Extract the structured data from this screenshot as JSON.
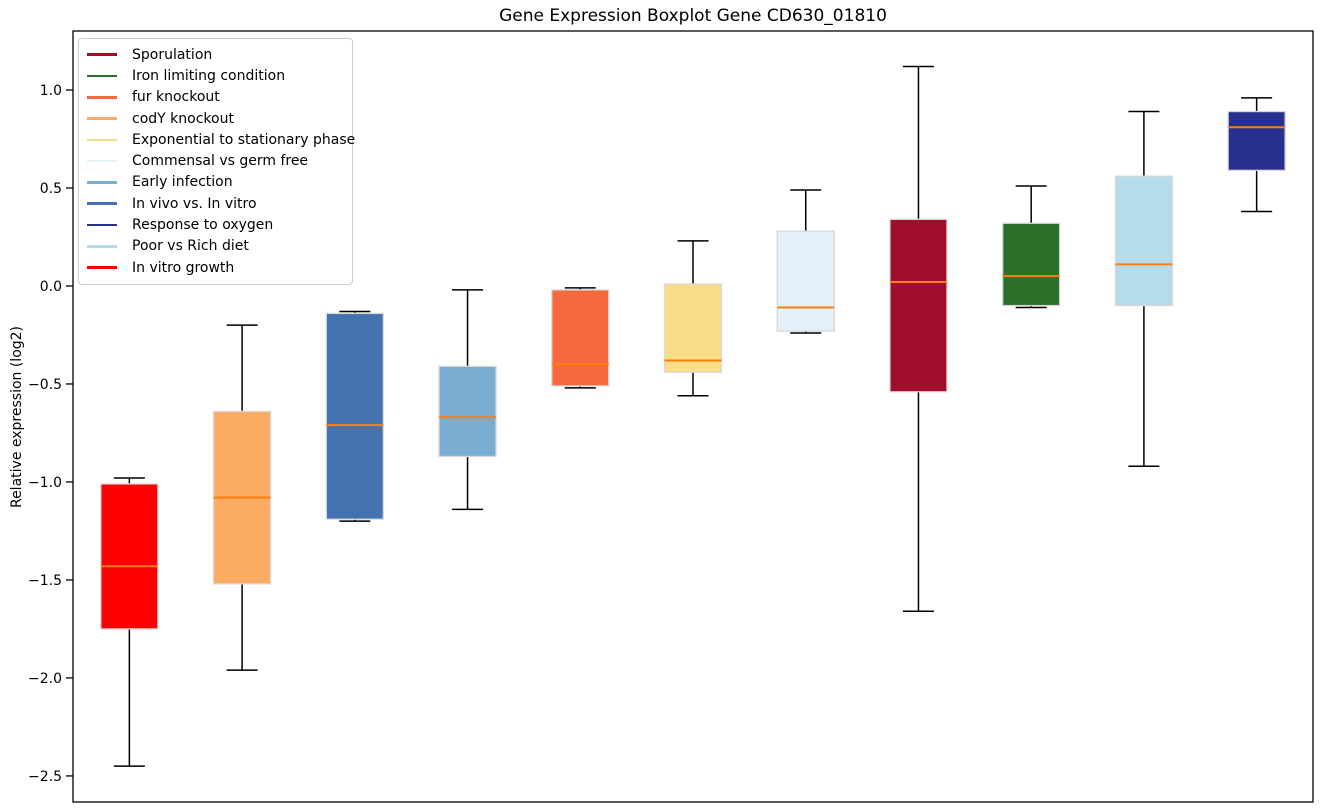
{
  "chart_data": {
    "type": "boxplot",
    "title": "Gene Expression Boxplot Gene CD630_01810",
    "ylabel": "Relative expression (log2)",
    "xlabel": "",
    "ylim": [
      -2.633,
      1.301
    ],
    "yticks": [
      1.0,
      0.5,
      0.0,
      -0.5,
      -1.0,
      -1.5,
      -2.0,
      -2.5
    ],
    "x_tick_labels": [],
    "grid": false,
    "legend_position": "upper-left",
    "colors": {
      "median_line": "#ff7f0e",
      "whisker": "#000000",
      "box_edge": "#d9d9d9",
      "axis": "#000000",
      "background": "#ffffff",
      "legend_border": "#cccccc"
    },
    "boxes": [
      {
        "name": "In vitro growth",
        "color": "#ff0000",
        "whisker_low": -2.45,
        "q1": -1.75,
        "median": -1.43,
        "q3": -1.01,
        "whisker_high": -0.98
      },
      {
        "name": "codY knockout",
        "color": "#fbab62",
        "whisker_low": -1.96,
        "q1": -1.52,
        "median": -1.08,
        "q3": -0.64,
        "whisker_high": -0.2
      },
      {
        "name": "In vivo vs. In vitro",
        "color": "#4472b0",
        "whisker_low": -1.2,
        "q1": -1.19,
        "median": -0.71,
        "q3": -0.14,
        "whisker_high": -0.13
      },
      {
        "name": "Early infection",
        "color": "#79aed2",
        "whisker_low": -1.14,
        "q1": -0.87,
        "median": -0.67,
        "q3": -0.41,
        "whisker_high": -0.02
      },
      {
        "name": "fur knockout",
        "color": "#f4693e",
        "whisker_low": -0.52,
        "q1": -0.51,
        "median": -0.4,
        "q3": -0.02,
        "whisker_high": -0.01
      },
      {
        "name": "Exponential to stationary phase",
        "color": "#fbdd87",
        "whisker_low": -0.56,
        "q1": -0.44,
        "median": -0.38,
        "q3": 0.01,
        "whisker_high": 0.23
      },
      {
        "name": "Commensal vs germ free",
        "color": "#e2f1f8",
        "whisker_low": -0.24,
        "q1": -0.23,
        "median": -0.11,
        "q3": 0.28,
        "whisker_high": 0.49
      },
      {
        "name": "Sporulation",
        "color": "#a00e2c",
        "whisker_low": -1.66,
        "q1": -0.54,
        "median": 0.02,
        "q3": 0.34,
        "whisker_high": 1.12
      },
      {
        "name": "Iron limiting condition",
        "color": "#2a7029",
        "whisker_low": -0.11,
        "q1": -0.1,
        "median": 0.05,
        "q3": 0.32,
        "whisker_high": 0.51
      },
      {
        "name": "Poor vs Rich diet",
        "color": "#b5dcea",
        "whisker_low": -0.92,
        "q1": -0.1,
        "median": 0.11,
        "q3": 0.56,
        "whisker_high": 0.89
      },
      {
        "name": "Response to oxygen",
        "color": "#28308e",
        "whisker_low": 0.38,
        "q1": 0.59,
        "median": 0.81,
        "q3": 0.89,
        "whisker_high": 0.96
      }
    ],
    "legend": [
      {
        "label": "Sporulation",
        "color": "#a00e2c"
      },
      {
        "label": "Iron limiting condition",
        "color": "#2a7029"
      },
      {
        "label": "fur knockout",
        "color": "#f4693e"
      },
      {
        "label": "codY knockout",
        "color": "#fbab62"
      },
      {
        "label": "Exponential to stationary phase",
        "color": "#fbdd87"
      },
      {
        "label": "Commensal vs germ free",
        "color": "#e2f1f8"
      },
      {
        "label": "Early infection",
        "color": "#79aed2"
      },
      {
        "label": "In vivo vs. In vitro",
        "color": "#4472b0"
      },
      {
        "label": "Response to oxygen",
        "color": "#28308e"
      },
      {
        "label": "Poor vs Rich diet",
        "color": "#b5dcea"
      },
      {
        "label": "In vitro growth",
        "color": "#ff0000"
      }
    ]
  }
}
